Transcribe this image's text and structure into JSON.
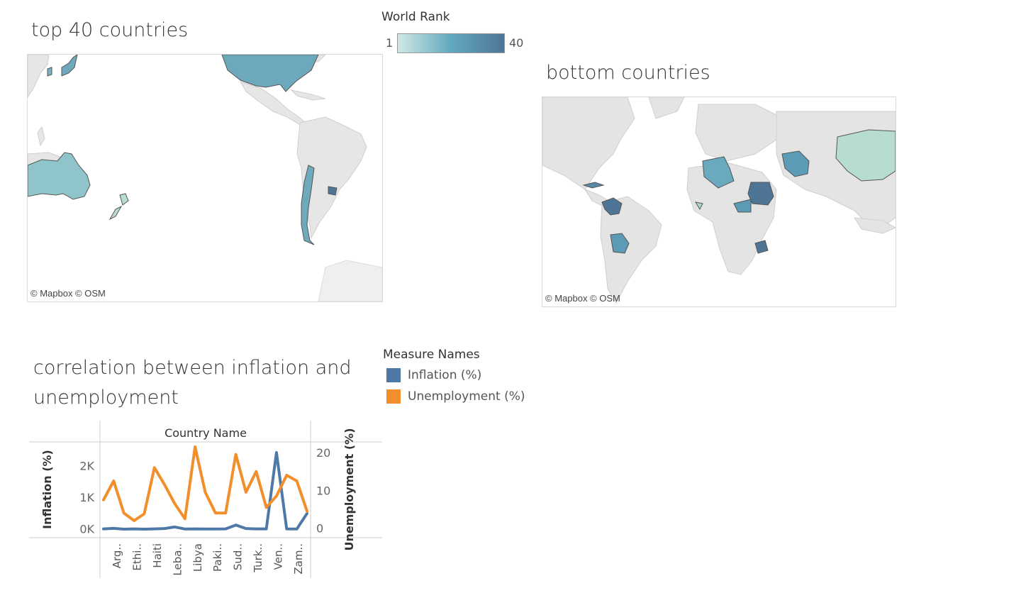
{
  "top_map": {
    "title": "top 40 countries",
    "credit": "© Mapbox  © OSM"
  },
  "bottom_map": {
    "title": "bottom countries",
    "credit": "© Mapbox  © OSM"
  },
  "rank_legend": {
    "title": "World Rank",
    "min": "1",
    "max": "40",
    "color_low": "#cfe9e4",
    "color_high": "#4f7596"
  },
  "measure_legend": {
    "title": "Measure Names",
    "items": [
      {
        "label": "Inflation (%)",
        "color": "#4e79a7"
      },
      {
        "label": "Unemployment (%)",
        "color": "#f28e2b"
      }
    ]
  },
  "correlation": {
    "title_line1": "correlation between inflation and",
    "title_line2": "unemployment"
  },
  "chart_data": {
    "type": "line",
    "header": "Country Name",
    "x_labels": [
      "Arg..",
      "Ethi..",
      "Haiti",
      "Leba..",
      "Libya",
      "Paki..",
      "Sud..",
      "Turk..",
      "Ven..",
      "Zam.."
    ],
    "categories": [
      "c1",
      "c2",
      "c3",
      "c4",
      "c5",
      "c6",
      "c7",
      "c8",
      "c9",
      "c10",
      "c11",
      "c12",
      "c13",
      "c14",
      "c15",
      "c16",
      "c17",
      "c18",
      "c19",
      "c20",
      "c21"
    ],
    "y_left": {
      "label": "Inflation (%)",
      "ticks": [
        "0K",
        "1K",
        "2K"
      ],
      "range": [
        -100,
        2600
      ]
    },
    "y_right": {
      "label": "Unemployment (%)",
      "ticks": [
        "0",
        "10",
        "20"
      ],
      "range": [
        -1,
        21.5
      ]
    },
    "series": [
      {
        "name": "Inflation (%)",
        "axis": "left",
        "color": "#4e79a7",
        "values": [
          0,
          15,
          -10,
          0,
          -10,
          0,
          10,
          60,
          -5,
          0,
          -5,
          -5,
          0,
          120,
          10,
          0,
          0,
          2420,
          0,
          -5,
          490
        ]
      },
      {
        "name": "Unemployment (%)",
        "axis": "right",
        "color": "#f28e2b",
        "values": [
          7.5,
          12.5,
          4,
          2,
          3.8,
          16,
          11.5,
          6.5,
          2.5,
          21.5,
          9.5,
          4,
          4,
          19.5,
          9.5,
          15,
          5.5,
          8.5,
          14,
          12.5,
          4.5
        ]
      }
    ]
  }
}
